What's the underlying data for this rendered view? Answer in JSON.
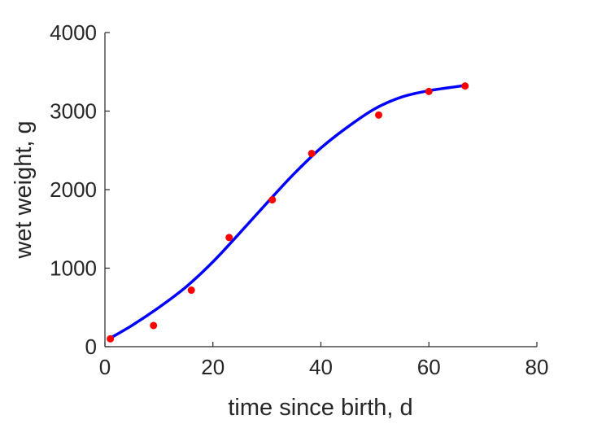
{
  "chart_data": {
    "type": "scatter",
    "title": "",
    "xlabel": "time since birth, d",
    "ylabel": "wet weight, g",
    "xlim": [
      0,
      80
    ],
    "ylim": [
      0,
      4000
    ],
    "xticks": [
      "0",
      "20",
      "40",
      "60",
      "80"
    ],
    "yticks": [
      "0",
      "1000",
      "2000",
      "3000",
      "4000"
    ],
    "grid": false,
    "box": false,
    "series": [
      {
        "kind": "points",
        "marker": "filled-circle",
        "color": "#ff0000",
        "x": [
          1,
          9,
          16,
          23,
          31,
          38.3,
          50.7,
          60,
          66.7
        ],
        "y": [
          100,
          270,
          720,
          1390,
          1870,
          2460,
          2950,
          3250,
          3320
        ]
      },
      {
        "kind": "fitted-curve",
        "line": "solid",
        "color": "#0000ff",
        "x": [
          1,
          5,
          10,
          15,
          20,
          25,
          30,
          35,
          40,
          45,
          50,
          55,
          60,
          65,
          67
        ],
        "y": [
          110,
          270,
          500,
          760,
          1080,
          1450,
          1830,
          2200,
          2530,
          2800,
          3030,
          3180,
          3260,
          3310,
          3330
        ]
      }
    ]
  }
}
